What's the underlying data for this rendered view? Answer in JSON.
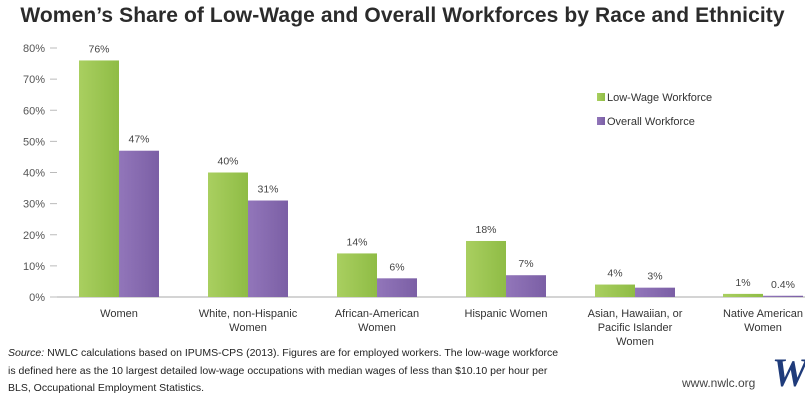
{
  "chart_data": {
    "type": "bar",
    "title": "Women’s Share of Low-Wage and Overall Workforces by Race and Ethnicity",
    "categories": [
      [
        "Women"
      ],
      [
        "White, non-Hispanic",
        "Women"
      ],
      [
        "African-American",
        "Women"
      ],
      [
        "Hispanic Women"
      ],
      [
        "Asian, Hawaiian, or",
        "Pacific Islander",
        "Women"
      ],
      [
        "Native American",
        "Women"
      ]
    ],
    "series": [
      {
        "name": "Low-Wage Workforce",
        "values": [
          76,
          40,
          14,
          18,
          4,
          1
        ],
        "labels": [
          "76%",
          "40%",
          "14%",
          "18%",
          "4%",
          "1%"
        ]
      },
      {
        "name": "Overall Workforce",
        "values": [
          47,
          31,
          6,
          7,
          3,
          0.4
        ],
        "labels": [
          "47%",
          "31%",
          "6%",
          "7%",
          "3%",
          "0.4%"
        ]
      }
    ],
    "y_ticks": [
      "0%",
      "10%",
      "20%",
      "30%",
      "40%",
      "50%",
      "60%",
      "70%",
      "80%"
    ],
    "ylim": [
      0,
      80
    ],
    "grid": false,
    "legend_position": "right"
  },
  "colors": {
    "low_wage": "#8fbc45",
    "low_wage_light": "#a9cf60",
    "overall": "#7b5fa5",
    "overall_light": "#9276ba",
    "logo": "#1f3b7a"
  },
  "source": {
    "label": "Source:",
    "text": " NWLC calculations based on IPUMS-CPS (2013).  Figures are for employed workers.  The low-wage workforce is defined here as the 10 largest detailed low-wage occupations with median wages of less than $10.10 per hour per BLS, Occupational Employment Statistics."
  },
  "website": "www.nwlc.org",
  "logo_letter": "W"
}
